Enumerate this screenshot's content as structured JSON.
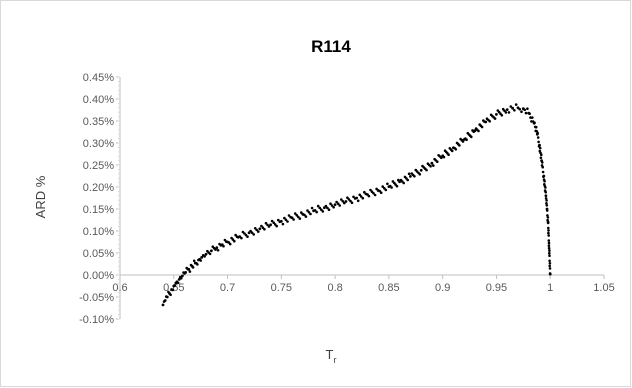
{
  "chart_data": {
    "type": "scatter",
    "title": "R114",
    "xlabel": "T",
    "xlabel_subscript": "r",
    "ylabel": "ARD %",
    "xlim": [
      0.6,
      1.05
    ],
    "ylim": [
      -0.001,
      0.0045
    ],
    "x_ticks": [
      {
        "value": 0.6,
        "label": "0.6"
      },
      {
        "value": 0.65,
        "label": "0.65"
      },
      {
        "value": 0.7,
        "label": "0.7"
      },
      {
        "value": 0.75,
        "label": "0.75"
      },
      {
        "value": 0.8,
        "label": "0.8"
      },
      {
        "value": 0.85,
        "label": "0.85"
      },
      {
        "value": 0.9,
        "label": "0.9"
      },
      {
        "value": 0.95,
        "label": "0.95"
      },
      {
        "value": 1.0,
        "label": "1"
      },
      {
        "value": 1.05,
        "label": "1.05"
      }
    ],
    "y_ticks": [
      {
        "value": 0.0045,
        "label": "0.45%"
      },
      {
        "value": 0.004,
        "label": "0.40%"
      },
      {
        "value": 0.0035,
        "label": "0.35%"
      },
      {
        "value": 0.003,
        "label": "0.30%"
      },
      {
        "value": 0.0025,
        "label": "0.25%"
      },
      {
        "value": 0.002,
        "label": "0.20%"
      },
      {
        "value": 0.0015,
        "label": "0.15%"
      },
      {
        "value": 0.001,
        "label": "0.10%"
      },
      {
        "value": 0.0005,
        "label": "0.05%"
      },
      {
        "value": 0.0,
        "label": "0.00%"
      },
      {
        "value": -0.0005,
        "label": "-0.05%"
      },
      {
        "value": -0.001,
        "label": "-0.10%"
      }
    ],
    "grid": false,
    "legend": "none",
    "marker_color": "#000000",
    "series": [
      {
        "points": [
          [
            0.64,
            -0.00068
          ],
          [
            0.642,
            -0.00058
          ],
          [
            0.644,
            -0.0005
          ],
          [
            0.646,
            -0.00042
          ],
          [
            0.648,
            -0.00033
          ],
          [
            0.65,
            -0.00025
          ],
          [
            0.652,
            -0.00018
          ],
          [
            0.655,
            -0.0001
          ],
          [
            0.658,
            -2e-05
          ],
          [
            0.661,
            6e-05
          ],
          [
            0.664,
            0.00013
          ],
          [
            0.667,
            0.0002
          ],
          [
            0.67,
            0.00027
          ],
          [
            0.673,
            0.00034
          ],
          [
            0.676,
            0.0004
          ],
          [
            0.68,
            0.00047
          ],
          [
            0.685,
            0.00055
          ],
          [
            0.69,
            0.00062
          ],
          [
            0.695,
            0.00069
          ],
          [
            0.7,
            0.00075
          ],
          [
            0.71,
            0.00086
          ],
          [
            0.72,
            0.00096
          ],
          [
            0.73,
            0.00105
          ],
          [
            0.74,
            0.00114
          ],
          [
            0.75,
            0.00122
          ],
          [
            0.76,
            0.0013
          ],
          [
            0.77,
            0.00138
          ],
          [
            0.78,
            0.00146
          ],
          [
            0.79,
            0.00153
          ],
          [
            0.8,
            0.0016
          ],
          [
            0.81,
            0.00167
          ],
          [
            0.82,
            0.00175
          ],
          [
            0.83,
            0.00183
          ],
          [
            0.84,
            0.00192
          ],
          [
            0.85,
            0.00201
          ],
          [
            0.86,
            0.00212
          ],
          [
            0.87,
            0.00224
          ],
          [
            0.88,
            0.00238
          ],
          [
            0.89,
            0.00254
          ],
          [
            0.9,
            0.00271
          ],
          [
            0.91,
            0.00289
          ],
          [
            0.92,
            0.00308
          ],
          [
            0.93,
            0.00328
          ],
          [
            0.94,
            0.00348
          ],
          [
            0.95,
            0.00365
          ],
          [
            0.96,
            0.00376
          ],
          [
            0.965,
            0.00379
          ],
          [
            0.97,
            0.0038
          ],
          [
            0.975,
            0.00378
          ],
          [
            0.98,
            0.00368
          ],
          [
            0.985,
            0.00345
          ],
          [
            0.988,
            0.0032
          ],
          [
            0.99,
            0.00295
          ],
          [
            0.992,
            0.0026
          ],
          [
            0.994,
            0.00225
          ],
          [
            0.996,
            0.0018
          ],
          [
            0.997,
            0.0015
          ],
          [
            0.998,
            0.0012
          ],
          [
            1.0,
            2e-05
          ]
        ]
      }
    ]
  }
}
